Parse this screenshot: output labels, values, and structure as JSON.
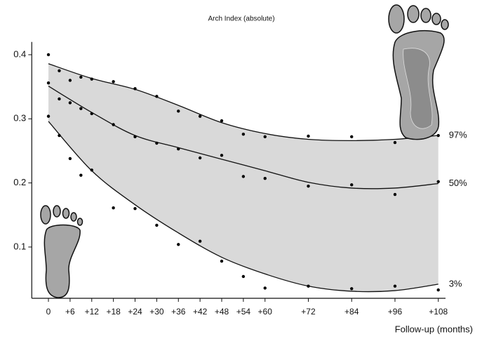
{
  "chart_data": {
    "type": "line",
    "title": "Arch Index (absolute)",
    "x_label": "Follow-up (months)",
    "xlim": [
      -5,
      110
    ],
    "ylim": [
      0.02,
      0.42
    ],
    "xticks": [
      0,
      {
        "value": 6,
        "label": "+6"
      },
      {
        "value": 12,
        "label": "+12"
      },
      {
        "value": 18,
        "label": "+18"
      },
      {
        "value": 24,
        "label": "+24"
      },
      {
        "value": 30,
        "label": "+30"
      },
      {
        "value": 36,
        "label": "+36"
      },
      {
        "value": 42,
        "label": "+42"
      },
      {
        "value": 48,
        "label": "+48"
      },
      {
        "value": 54,
        "label": "+54"
      },
      {
        "value": 60,
        "label": "+60"
      },
      {
        "value": 72,
        "label": "+72"
      },
      {
        "value": 84,
        "label": "+84"
      },
      {
        "value": 96,
        "label": "+96"
      },
      {
        "value": 108,
        "label": "+108"
      }
    ],
    "yticks": [
      0.1,
      0.2,
      0.3,
      0.4
    ],
    "band_color": "#d9d9d9",
    "series": [
      {
        "name": "97%",
        "color": "#111111",
        "x": [
          0,
          12,
          24,
          36,
          48,
          60,
          72,
          84,
          96,
          108
        ],
        "values": [
          0.386,
          0.363,
          0.346,
          0.321,
          0.294,
          0.277,
          0.268,
          0.266,
          0.268,
          0.274
        ]
      },
      {
        "name": "50%",
        "color": "#111111",
        "x": [
          0,
          12,
          24,
          36,
          48,
          60,
          72,
          84,
          96,
          108
        ],
        "values": [
          0.351,
          0.31,
          0.274,
          0.255,
          0.237,
          0.219,
          0.201,
          0.192,
          0.192,
          0.199
        ]
      },
      {
        "name": "3%",
        "color": "#111111",
        "x": [
          0,
          12,
          24,
          36,
          48,
          60,
          72,
          84,
          96,
          108
        ],
        "values": [
          0.296,
          0.219,
          0.166,
          0.122,
          0.084,
          0.058,
          0.039,
          0.031,
          0.032,
          0.042
        ]
      }
    ],
    "observations": {
      "color": "#000000",
      "x": [
        0,
        0,
        0,
        3,
        3,
        3,
        6,
        6,
        6,
        9,
        9,
        9,
        12,
        12,
        12,
        18,
        18,
        18,
        24,
        24,
        24,
        30,
        30,
        30,
        36,
        36,
        36,
        42,
        42,
        42,
        48,
        48,
        48,
        54,
        54,
        54,
        60,
        60,
        60,
        72,
        72,
        72,
        84,
        84,
        84,
        96,
        96,
        96,
        108,
        108,
        108
      ],
      "values": [
        0.4,
        0.356,
        0.304,
        0.375,
        0.331,
        0.274,
        0.36,
        0.325,
        0.238,
        0.365,
        0.316,
        0.212,
        0.362,
        0.308,
        0.22,
        0.358,
        0.291,
        0.161,
        0.347,
        0.272,
        0.16,
        0.335,
        0.262,
        0.134,
        0.312,
        0.253,
        0.104,
        0.304,
        0.239,
        0.109,
        0.297,
        0.243,
        0.078,
        0.276,
        0.21,
        0.054,
        0.272,
        0.207,
        0.036,
        0.273,
        0.195,
        0.039,
        0.272,
        0.197,
        0.035,
        0.263,
        0.182,
        0.039,
        0.274,
        0.202,
        0.033
      ]
    }
  }
}
